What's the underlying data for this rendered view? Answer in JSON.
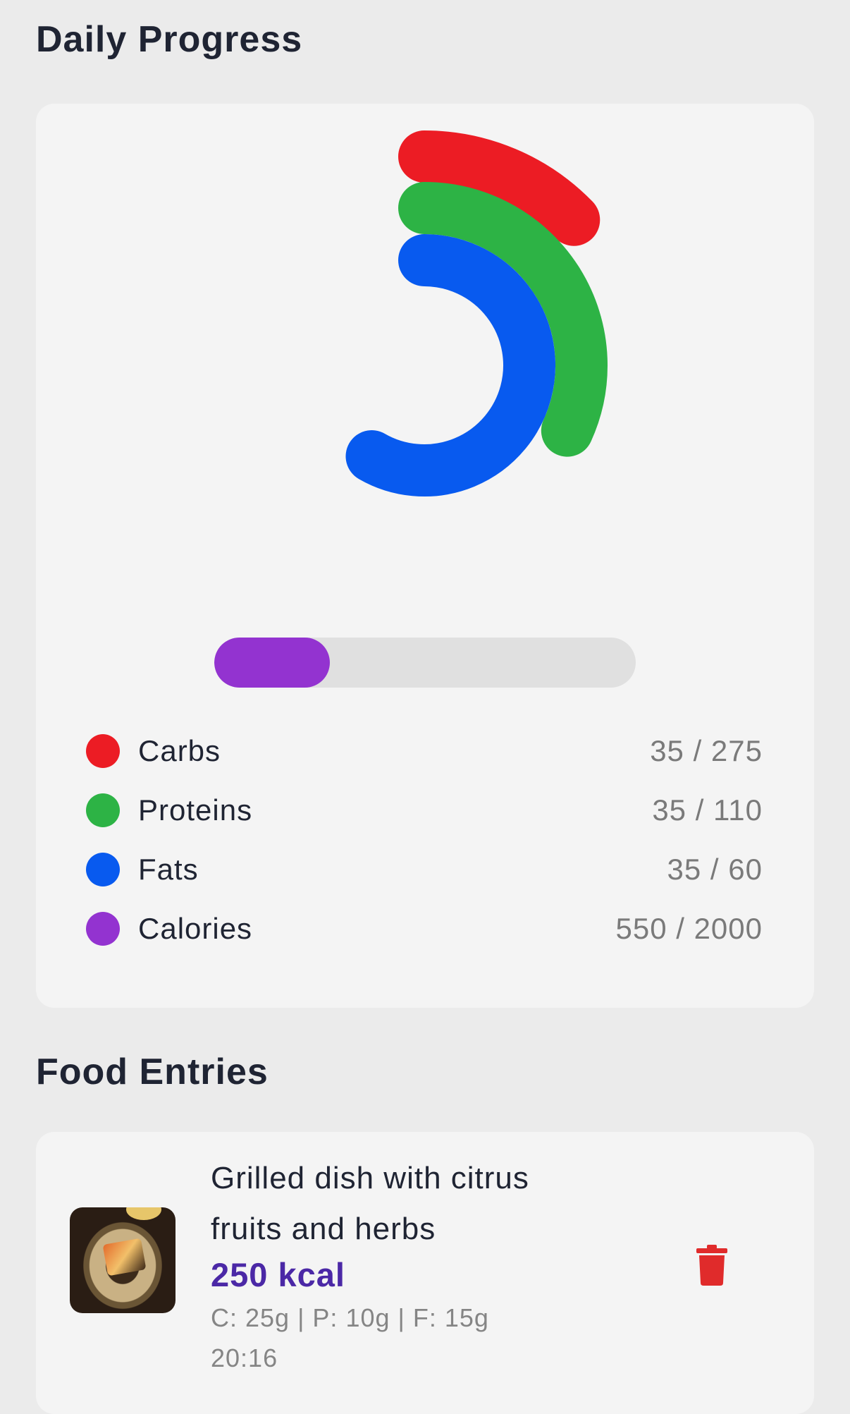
{
  "daily_progress": {
    "title": "Daily Progress",
    "rings": [
      {
        "name": "Carbs",
        "current": 35,
        "goal": 275,
        "color": "#ec1c24"
      },
      {
        "name": "Proteins",
        "current": 35,
        "goal": 110,
        "color": "#2db345"
      },
      {
        "name": "Fats",
        "current": 35,
        "goal": 60,
        "color": "#085aef"
      }
    ],
    "calorie_bar": {
      "current": 550,
      "goal": 2000,
      "color": "#9333d0"
    },
    "legend": [
      {
        "label": "Carbs",
        "value": "35 / 275",
        "color": "#ec1c24"
      },
      {
        "label": "Proteins",
        "value": "35 / 110",
        "color": "#2db345"
      },
      {
        "label": "Fats",
        "value": "35 / 60",
        "color": "#085aef"
      },
      {
        "label": "Calories",
        "value": "550 / 2000",
        "color": "#9333d0"
      }
    ]
  },
  "food_entries": {
    "title": "Food Entries",
    "items": [
      {
        "name": "Grilled dish with citrus fruits and herbs",
        "kcal": "250 kcal",
        "macros": "C: 25g | P: 10g | F: 15g",
        "time": "20:16"
      }
    ]
  }
}
